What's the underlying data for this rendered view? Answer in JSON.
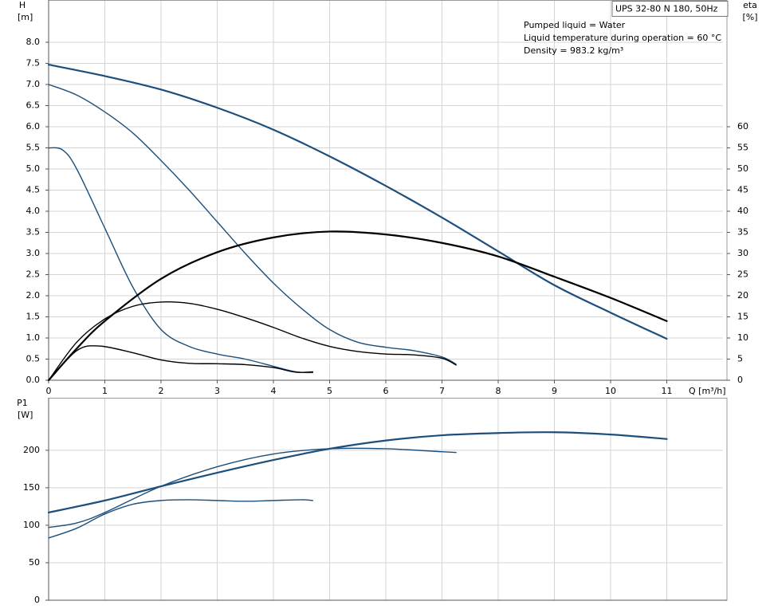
{
  "chart_data": [
    {
      "type": "line",
      "title": "UPS 32-80 N 180, 50Hz",
      "annotations": [
        "Pumped liquid = Water",
        "Liquid temperature during operation = 60 °C",
        "Density = 983.2 kg/m³"
      ],
      "ylabel": [
        "H",
        "[m]"
      ],
      "y2label": [
        "eta",
        "[%]"
      ],
      "xlabel": "Q [m³/h]",
      "xlim": [
        0,
        12
      ],
      "xticks": [
        0,
        1,
        2,
        3,
        4,
        5,
        6,
        7,
        8,
        9,
        10,
        11
      ],
      "ylim": [
        0,
        9
      ],
      "yticks": [
        {
          "value": 0,
          "label": "0.0"
        },
        0.5,
        {
          "value": 1,
          "label": "1.0"
        },
        1.5,
        {
          "value": 2,
          "label": "2.0"
        },
        2.5,
        {
          "value": 3,
          "label": "3.0"
        },
        3.5,
        {
          "value": 4,
          "label": "4.0"
        },
        4.5,
        {
          "value": 5,
          "label": "5.0"
        },
        5.5,
        {
          "value": 6,
          "label": "6.0"
        },
        6.5,
        {
          "value": 7,
          "label": "7.0"
        },
        7.5,
        {
          "value": 8,
          "label": "8.0"
        }
      ],
      "y2lim": [
        0,
        90
      ],
      "y2ticks": [
        0,
        5,
        10,
        15,
        20,
        25,
        30,
        35,
        40,
        45,
        50,
        55,
        60
      ],
      "grid": true,
      "series": [
        {
          "color": "#1d4f7c",
          "x": [
            0,
            1,
            2,
            3,
            4,
            5,
            6,
            7,
            8,
            9,
            10,
            11
          ],
          "values": [
            7.47,
            7.2,
            6.88,
            6.45,
            5.93,
            5.3,
            4.6,
            3.85,
            3.05,
            2.25,
            1.6,
            0.98
          ]
        },
        {
          "color": "#1d4f7c",
          "x": [
            0,
            0.5,
            1,
            1.5,
            2,
            2.5,
            3,
            3.5,
            4,
            4.5,
            5,
            5.5,
            6,
            6.5,
            7,
            7.25
          ],
          "values": [
            7.0,
            6.75,
            6.35,
            5.85,
            5.2,
            4.5,
            3.75,
            3.0,
            2.3,
            1.7,
            1.2,
            0.9,
            0.78,
            0.7,
            0.55,
            0.38
          ]
        },
        {
          "color": "#1d4f7c",
          "x": [
            0,
            0.25,
            0.5,
            1,
            1.5,
            2,
            2.5,
            3,
            3.5,
            4,
            4.4,
            4.7
          ],
          "values": [
            5.5,
            5.45,
            5.0,
            3.6,
            2.2,
            1.2,
            0.8,
            0.62,
            0.5,
            0.33,
            0.2,
            0.18
          ]
        },
        {
          "color": "#000000",
          "axis": "y2",
          "x": [
            0,
            0.5,
            1,
            2,
            3,
            4,
            5,
            6,
            7,
            8,
            9,
            10,
            11
          ],
          "values": [
            0,
            7.5,
            14,
            24,
            30.3,
            33.8,
            35.2,
            34.5,
            32.5,
            29.3,
            24.5,
            19.5,
            14
          ]
        },
        {
          "color": "#000000",
          "axis": "y2",
          "x": [
            0,
            0.5,
            1,
            1.5,
            2,
            2.5,
            3,
            3.5,
            4,
            4.5,
            5,
            5.5,
            6,
            6.5,
            7,
            7.25
          ],
          "values": [
            0,
            9,
            14.5,
            17.5,
            18.5,
            18.2,
            16.8,
            14.8,
            12.5,
            10,
            8,
            6.8,
            6.2,
            6.0,
            5.2,
            3.6
          ]
        },
        {
          "color": "#000000",
          "axis": "y2",
          "x": [
            0,
            0.5,
            0.9,
            1.5,
            2,
            2.5,
            3,
            3.5,
            4,
            4.4,
            4.7
          ],
          "values": [
            0,
            7,
            8.1,
            6.5,
            4.8,
            4.0,
            3.9,
            3.7,
            3.0,
            1.9,
            2.0
          ]
        }
      ]
    },
    {
      "type": "line",
      "ylabel": [
        "P1",
        "[W]"
      ],
      "xlim": [
        0,
        12
      ],
      "xticks": [
        0,
        1,
        2,
        3,
        4,
        5,
        6,
        7,
        8,
        9,
        10,
        11
      ],
      "ylim": [
        0,
        270
      ],
      "yticks": [
        0,
        50,
        100,
        150,
        200
      ],
      "grid": true,
      "series": [
        {
          "color": "#1d4f7c",
          "x": [
            0,
            1,
            2,
            3,
            4,
            5,
            6,
            7,
            8,
            9,
            10,
            11
          ],
          "values": [
            117,
            133,
            152,
            170,
            187,
            202,
            213,
            220,
            223,
            224,
            221,
            215
          ]
        },
        {
          "color": "#1d4f7c",
          "x": [
            0,
            0.5,
            1,
            2,
            3,
            4,
            5,
            6,
            7,
            7.25
          ],
          "values": [
            97,
            103,
            117,
            152,
            178,
            195,
            202,
            202,
            198,
            197
          ]
        },
        {
          "color": "#1d4f7c",
          "x": [
            0,
            0.5,
            1,
            1.5,
            2,
            2.5,
            3,
            3.5,
            4,
            4.5,
            4.7
          ],
          "values": [
            83,
            96,
            115,
            128,
            133,
            134,
            133,
            132,
            133,
            134,
            133
          ]
        }
      ]
    }
  ]
}
